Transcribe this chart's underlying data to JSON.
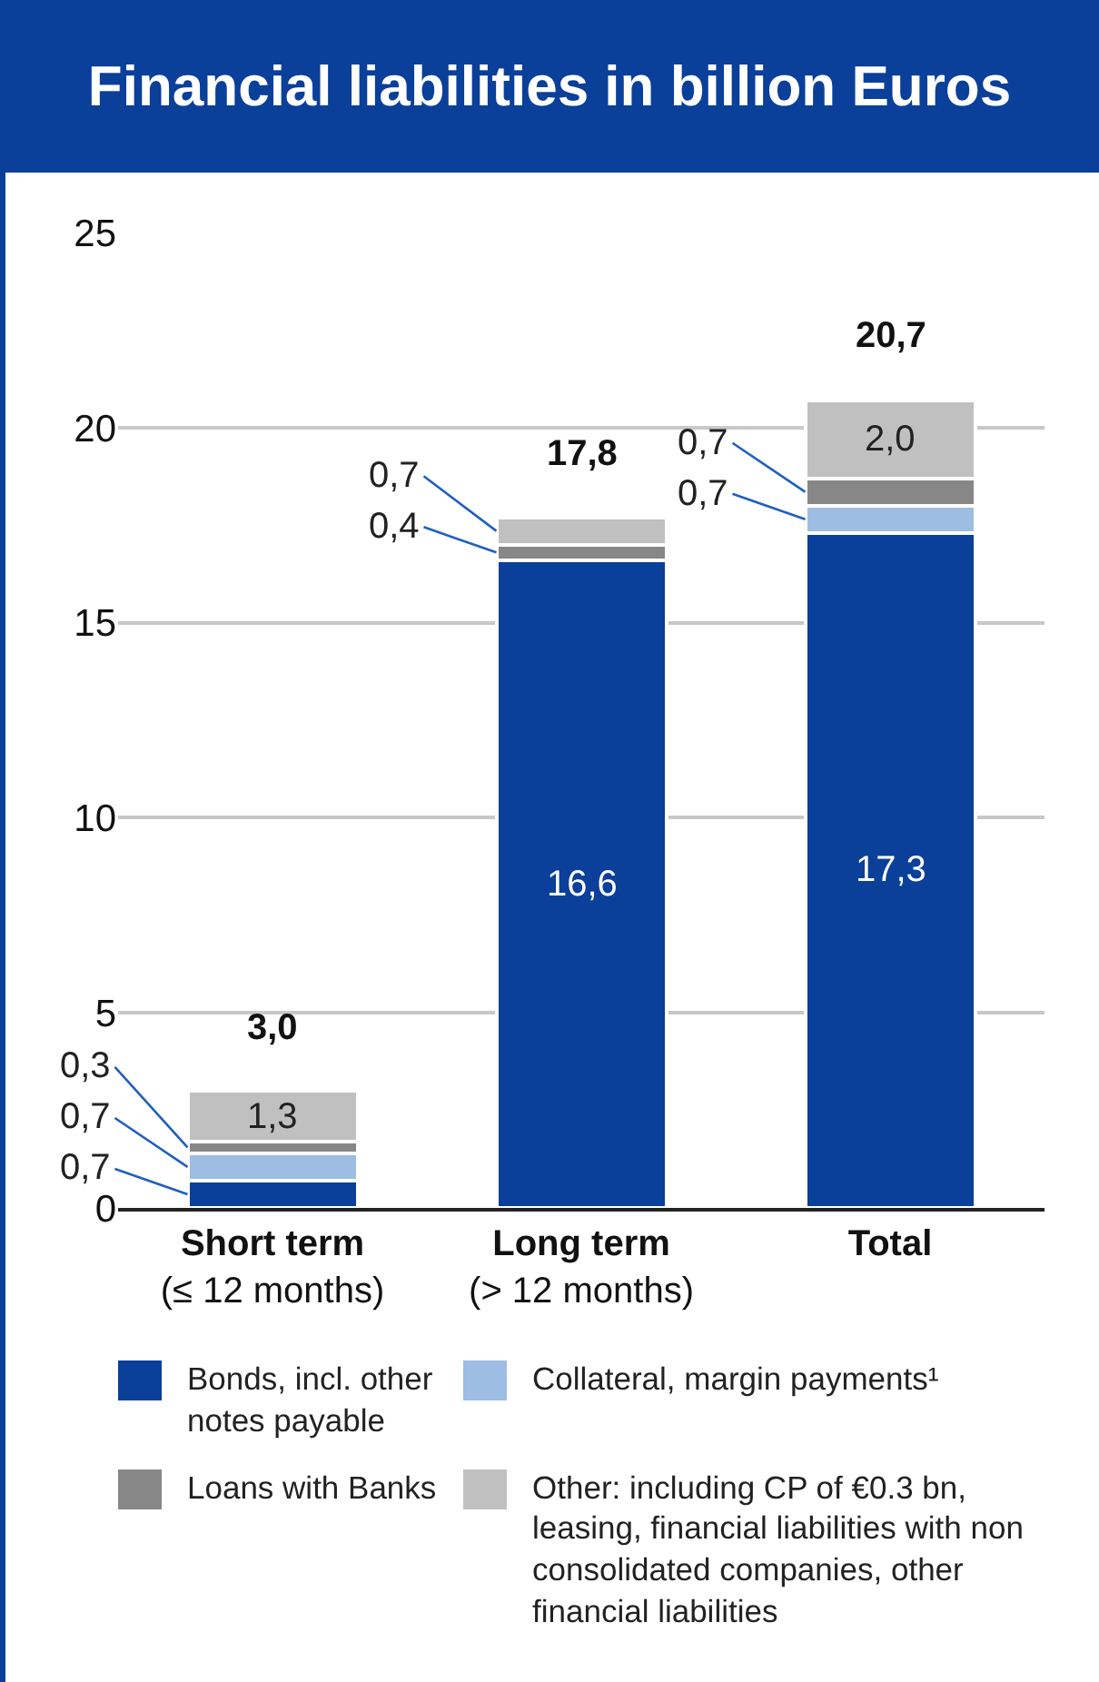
{
  "chart_data": {
    "type": "bar",
    "title": "Financial liabilities in billion Euros",
    "categories": [
      "Short term (≤ 12 months)",
      "Long term (> 12 months)",
      "Total"
    ],
    "stacked": true,
    "series": [
      {
        "name": "Bonds, incl. other notes payable",
        "color": "#0a3f9a",
        "values": [
          0.7,
          16.6,
          17.3
        ],
        "value_labels": [
          "0,7",
          "16,6",
          "17,3"
        ]
      },
      {
        "name": "Collateral, margin payments¹",
        "color": "#9dbde2",
        "values": [
          0.7,
          null,
          0.7
        ],
        "value_labels": [
          "0,7",
          null,
          "0,7"
        ]
      },
      {
        "name": "Loans with Banks",
        "color": "#878787",
        "values": [
          0.3,
          0.4,
          0.7
        ],
        "value_labels": [
          "0,3",
          "0,4",
          "0,7"
        ]
      },
      {
        "name": "Other: including CP of €0.3 bn, leasing, financial liabilities with non consolidated companies, other financial liabilities",
        "color": "#c0c0c0",
        "values": [
          1.3,
          0.7,
          2.0
        ],
        "value_labels": [
          "1,3",
          "0,7",
          "2,0"
        ]
      }
    ],
    "totals": [
      "3,0",
      "17,8",
      "20,7"
    ],
    "ylim": [
      0,
      25
    ],
    "yticks": [
      0,
      5,
      10,
      15,
      20,
      25
    ],
    "grid": "y",
    "legend": "bottom"
  }
}
